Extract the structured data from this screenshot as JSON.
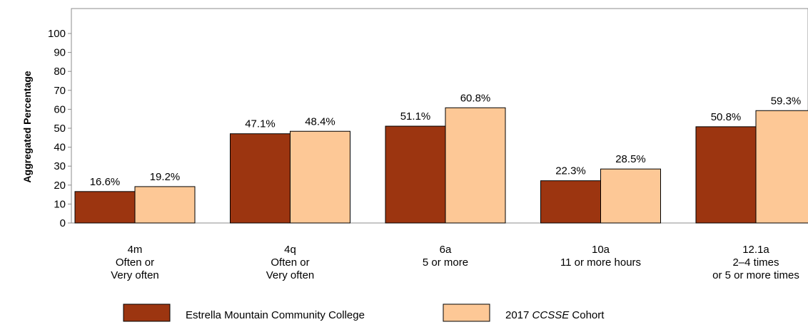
{
  "chart_data": {
    "type": "bar",
    "title": "",
    "xlabel": "",
    "ylabel": "Aggregated Percentage",
    "ylim": [
      0,
      100
    ],
    "yticks": [
      0,
      10,
      20,
      30,
      40,
      50,
      60,
      70,
      80,
      90,
      100
    ],
    "categories": [
      [
        "4m",
        "Often or",
        "Very often"
      ],
      [
        "4q",
        "Often or",
        "Very often"
      ],
      [
        "6a",
        "5 or more"
      ],
      [
        "10a",
        "11 or more hours"
      ],
      [
        "12.1a",
        "2–4 times",
        "or 5 or more times"
      ]
    ],
    "series": [
      {
        "name": "Estrella Mountain Community College",
        "color": "#9c3510",
        "values": [
          16.6,
          47.1,
          51.1,
          22.3,
          50.8
        ],
        "value_labels": [
          "16.6%",
          "47.1%",
          "51.1%",
          "22.3%",
          "50.8%"
        ]
      },
      {
        "name": "2017 CCSSE Cohort",
        "name_parts": [
          "2017 ",
          "CCSSE",
          " Cohort"
        ],
        "color": "#fdc896",
        "values": [
          19.2,
          48.4,
          60.8,
          28.5,
          59.3
        ],
        "value_labels": [
          "19.2%",
          "48.4%",
          "60.8%",
          "28.5%",
          "59.3%"
        ]
      }
    ],
    "grid": false,
    "legend_position": "bottom"
  }
}
